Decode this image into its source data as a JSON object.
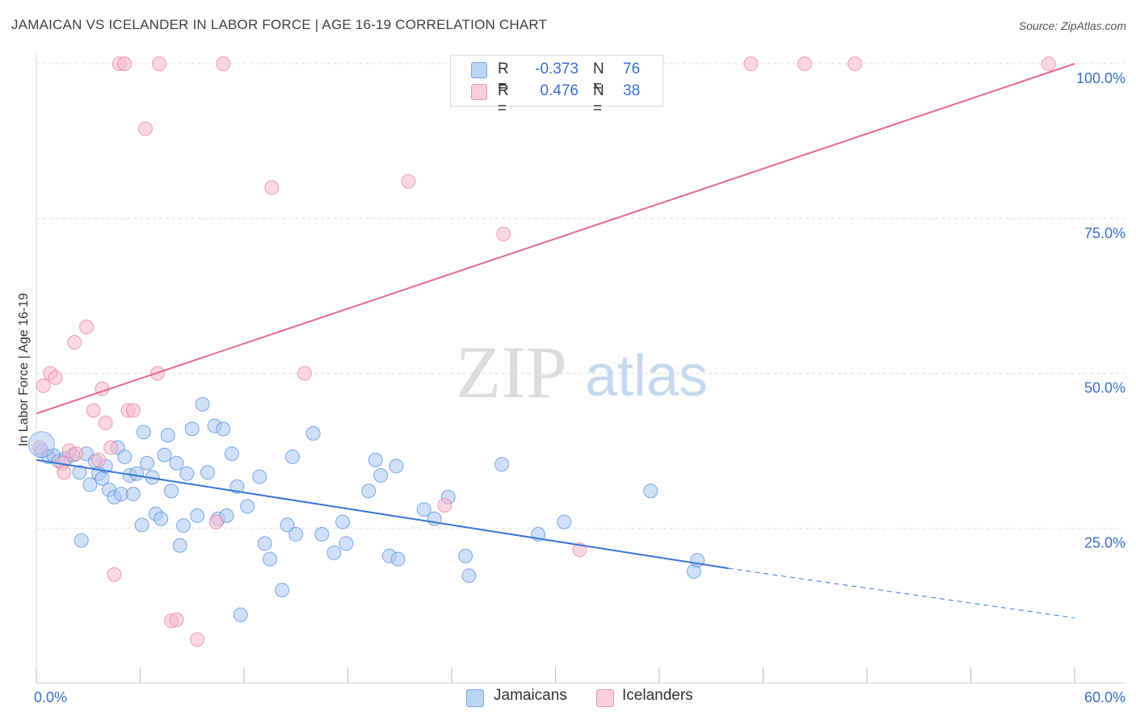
{
  "header": {
    "title": "JAMAICAN VS ICELANDER IN LABOR FORCE | AGE 16-19 CORRELATION CHART",
    "source": "Source: ZipAtlas.com"
  },
  "watermark": {
    "zip": "ZIP",
    "atlas": "atlas"
  },
  "legend": {
    "rows": [
      {
        "r_label": "R =",
        "r_value": "-0.373",
        "n_label": "N =",
        "n_value": "76",
        "color": "#a9c7ef"
      },
      {
        "r_label": "R =",
        "r_value": "0.476",
        "n_label": "N =",
        "n_value": "38",
        "color": "#f5b8cb"
      }
    ]
  },
  "bottom_legend": {
    "items": [
      "Jamaicans",
      "Icelanders"
    ]
  },
  "chart_data": {
    "type": "scatter",
    "title": "JAMAICAN VS ICELANDER IN LABOR FORCE | AGE 16-19 CORRELATION CHART",
    "xlabel": "",
    "ylabel": "In Labor Force | Age 16-19",
    "xlim": [
      0,
      60
    ],
    "ylim": [
      0,
      100
    ],
    "x_tick_labels": [
      "0.0%",
      "60.0%"
    ],
    "y_tick_labels": [
      "25.0%",
      "50.0%",
      "75.0%",
      "100.0%"
    ],
    "y_ticks": [
      25,
      50,
      75,
      100
    ],
    "grid": true,
    "legend_placement": "top-center",
    "series": [
      {
        "name": "Jamaicans",
        "color": "#4a86e0",
        "fill": "#a9c7ef",
        "trend": {
          "x": [
            0,
            40
          ],
          "y": [
            36.0,
            18.5
          ],
          "dashed_to": [
            60,
            10.5
          ]
        },
        "points": [
          [
            0.3,
            37.5
          ],
          [
            0.7,
            36.5
          ],
          [
            1.0,
            36.7
          ],
          [
            1.3,
            35.8
          ],
          [
            1.7,
            36.2
          ],
          [
            2.1,
            36.8
          ],
          [
            2.5,
            34.0
          ],
          [
            2.6,
            23.0
          ],
          [
            2.9,
            37.0
          ],
          [
            3.1,
            32.0
          ],
          [
            3.4,
            35.8
          ],
          [
            3.6,
            33.8
          ],
          [
            3.8,
            33.0
          ],
          [
            4.0,
            35.0
          ],
          [
            4.2,
            31.2
          ],
          [
            4.5,
            30.0
          ],
          [
            4.7,
            38.0
          ],
          [
            4.9,
            30.5
          ],
          [
            5.1,
            36.5
          ],
          [
            5.4,
            33.5
          ],
          [
            5.6,
            30.5
          ],
          [
            5.8,
            33.8
          ],
          [
            6.1,
            25.5
          ],
          [
            6.2,
            40.5
          ],
          [
            6.4,
            35.5
          ],
          [
            6.7,
            33.2
          ],
          [
            6.9,
            27.3
          ],
          [
            7.2,
            26.5
          ],
          [
            7.4,
            36.8
          ],
          [
            7.6,
            40.0
          ],
          [
            7.8,
            31.0
          ],
          [
            8.1,
            35.5
          ],
          [
            8.3,
            22.2
          ],
          [
            8.5,
            25.4
          ],
          [
            8.7,
            33.8
          ],
          [
            9.0,
            41.0
          ],
          [
            9.3,
            27.0
          ],
          [
            9.6,
            45.0
          ],
          [
            9.9,
            34.0
          ],
          [
            10.3,
            41.5
          ],
          [
            10.5,
            26.5
          ],
          [
            10.8,
            41.0
          ],
          [
            11.0,
            27.0
          ],
          [
            11.3,
            37.0
          ],
          [
            11.6,
            31.7
          ],
          [
            11.8,
            11.0
          ],
          [
            12.2,
            28.5
          ],
          [
            12.9,
            33.3
          ],
          [
            13.2,
            22.5
          ],
          [
            13.5,
            20.0
          ],
          [
            14.2,
            15.0
          ],
          [
            14.5,
            25.5
          ],
          [
            14.8,
            36.5
          ],
          [
            15.0,
            24.0
          ],
          [
            16.0,
            40.3
          ],
          [
            16.5,
            24.0
          ],
          [
            17.2,
            21.0
          ],
          [
            17.7,
            26.0
          ],
          [
            17.9,
            22.5
          ],
          [
            19.2,
            31.0
          ],
          [
            19.6,
            36.0
          ],
          [
            19.9,
            33.5
          ],
          [
            20.4,
            20.5
          ],
          [
            20.8,
            35.0
          ],
          [
            20.9,
            20.0
          ],
          [
            22.4,
            28.0
          ],
          [
            23.0,
            26.5
          ],
          [
            23.8,
            30.0
          ],
          [
            24.8,
            20.5
          ],
          [
            25.0,
            17.3
          ],
          [
            26.9,
            35.3
          ],
          [
            29.0,
            24.0
          ],
          [
            30.5,
            26.0
          ],
          [
            35.5,
            31.0
          ],
          [
            38.0,
            18.0
          ],
          [
            38.2,
            19.8
          ]
        ]
      },
      {
        "name": "Icelanders",
        "color": "#e8769a",
        "fill": "#f5b8cb",
        "trend": {
          "x": [
            0,
            60
          ],
          "y": [
            43.5,
            100
          ]
        },
        "points": [
          [
            0.2,
            38.0
          ],
          [
            0.4,
            48.0
          ],
          [
            0.8,
            50.0
          ],
          [
            1.1,
            49.3
          ],
          [
            1.5,
            35.5
          ],
          [
            1.6,
            34.0
          ],
          [
            1.9,
            37.5
          ],
          [
            2.2,
            55.0
          ],
          [
            2.3,
            37.0
          ],
          [
            2.9,
            57.5
          ],
          [
            3.3,
            44.0
          ],
          [
            3.6,
            36.0
          ],
          [
            3.8,
            47.5
          ],
          [
            4.0,
            42.0
          ],
          [
            4.3,
            38.0
          ],
          [
            4.5,
            17.5
          ],
          [
            4.8,
            100.0
          ],
          [
            5.1,
            100.0
          ],
          [
            5.3,
            44.0
          ],
          [
            5.6,
            44.0
          ],
          [
            6.3,
            89.5
          ],
          [
            7.1,
            100.0
          ],
          [
            7.0,
            50.0
          ],
          [
            7.8,
            10.0
          ],
          [
            8.1,
            10.2
          ],
          [
            9.3,
            7.0
          ],
          [
            10.4,
            26.0
          ],
          [
            10.8,
            100.0
          ],
          [
            13.6,
            80.0
          ],
          [
            15.5,
            50.0
          ],
          [
            21.5,
            81.0
          ],
          [
            23.6,
            28.7
          ],
          [
            27.0,
            72.5
          ],
          [
            31.4,
            21.5
          ],
          [
            41.3,
            100.0
          ],
          [
            44.4,
            100.0
          ],
          [
            47.3,
            100.0
          ],
          [
            58.5,
            100.0
          ]
        ]
      }
    ]
  }
}
